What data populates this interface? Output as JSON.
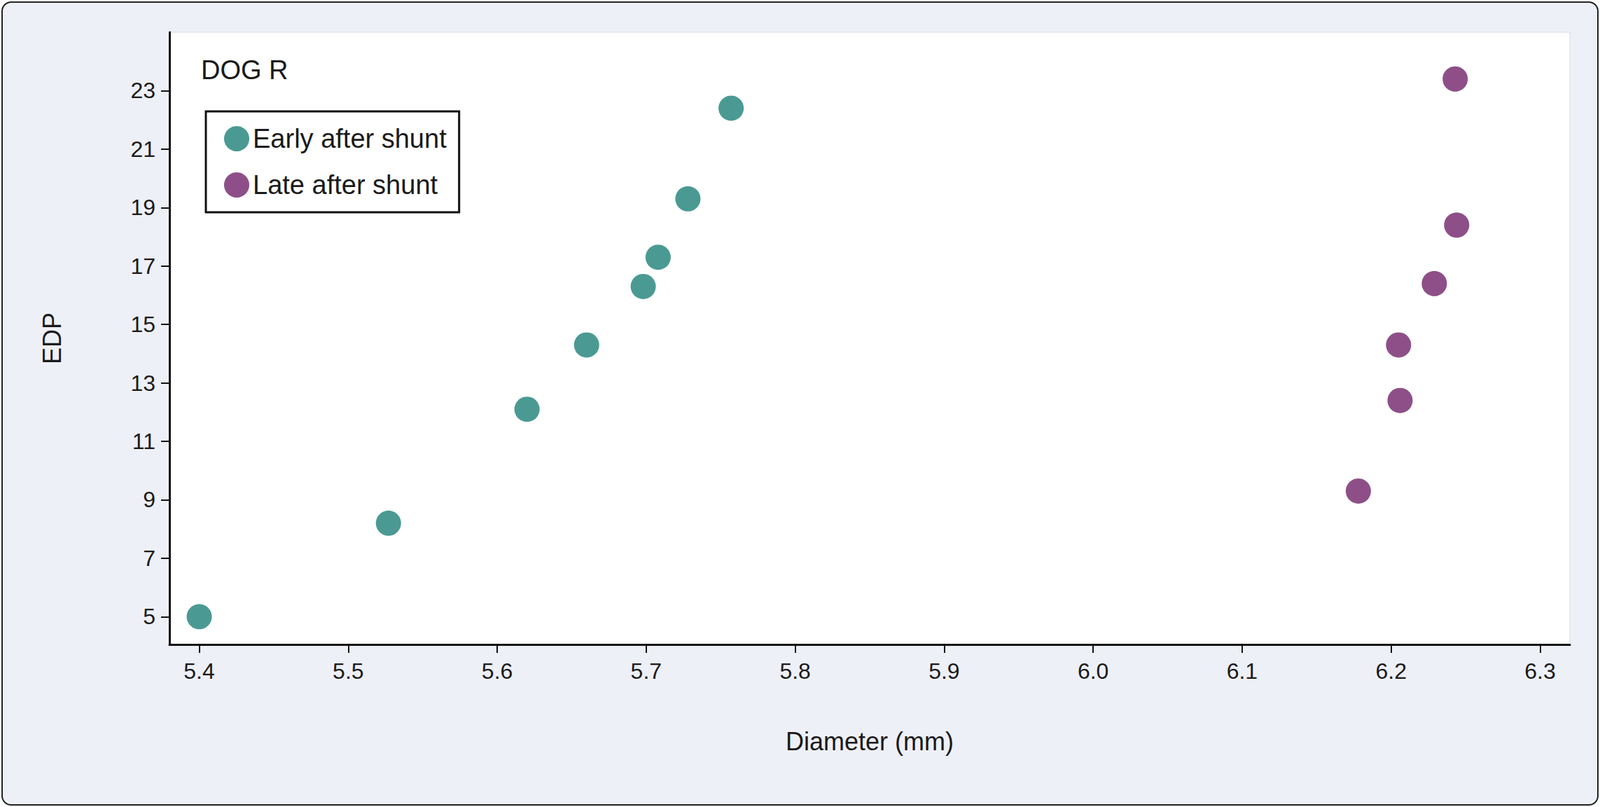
{
  "chart_data": {
    "type": "scatter",
    "annotation": "DOG R",
    "x_label": "Diameter (mm)",
    "y_label": "EDP",
    "xlim": [
      5.38,
      6.32
    ],
    "xticks": [
      5.4,
      5.5,
      5.6,
      5.7,
      5.8,
      5.9,
      {
        "value": 6.0,
        "label": "6.0"
      },
      6.1,
      6.2,
      6.3
    ],
    "ylim": [
      4.05,
      25
    ],
    "yticks": [
      5,
      7,
      9,
      11,
      13,
      15,
      17,
      19,
      21,
      23
    ],
    "grid": false,
    "legend": "top-left",
    "series": [
      {
        "name": "Early after shunt",
        "color": "#4a9a93",
        "marker": "circle",
        "x": [
          5.4,
          5.527,
          5.62,
          5.66,
          5.698,
          5.708,
          5.728,
          5.757
        ],
        "values": [
          5.0,
          8.2,
          12.1,
          14.3,
          16.3,
          17.3,
          19.3,
          22.4
        ]
      },
      {
        "name": "Late after shunt",
        "color": "#8e4f88",
        "marker": "circle",
        "x": [
          6.178,
          6.206,
          6.205,
          6.229,
          6.244,
          6.243
        ],
        "values": [
          9.3,
          12.4,
          14.3,
          16.4,
          18.4,
          23.4
        ]
      }
    ]
  }
}
